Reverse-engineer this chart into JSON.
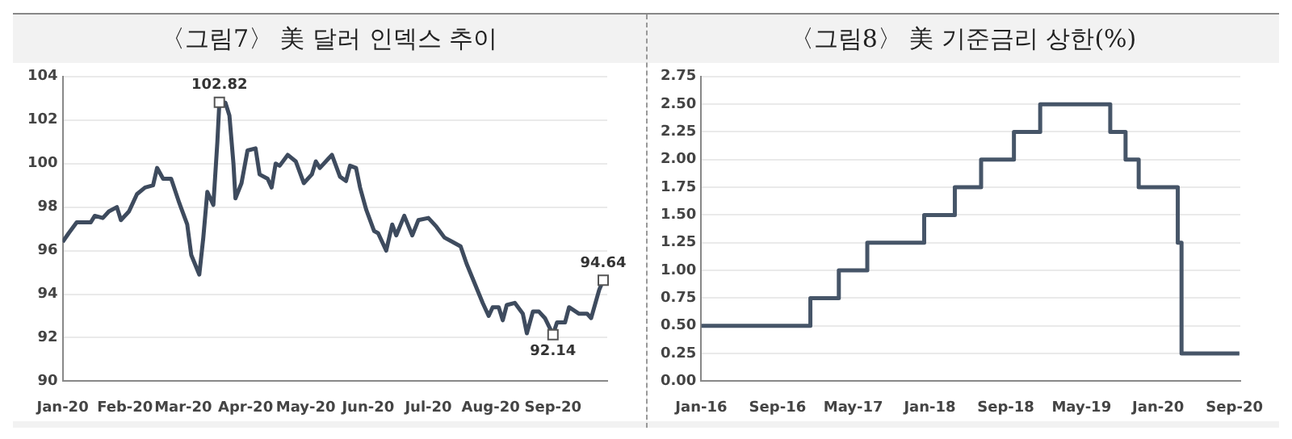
{
  "chart_data": [
    {
      "type": "line",
      "title": "〈그림7〉 美 달러 인덱스 추이",
      "x": [
        "2020-01-01",
        "2020-01-04",
        "2020-01-08",
        "2020-01-15",
        "2020-01-17",
        "2020-01-21",
        "2020-01-24",
        "2020-01-28",
        "2020-01-30",
        "2020-02-03",
        "2020-02-07",
        "2020-02-11",
        "2020-02-15",
        "2020-02-17",
        "2020-02-20",
        "2020-02-24",
        "2020-02-28",
        "2020-03-03",
        "2020-03-05",
        "2020-03-09",
        "2020-03-11",
        "2020-03-13",
        "2020-03-16",
        "2020-03-18",
        "2020-03-19",
        "2020-03-22",
        "2020-03-24",
        "2020-03-26",
        "2020-03-27",
        "2020-03-30",
        "2020-04-02",
        "2020-04-06",
        "2020-04-08",
        "2020-04-12",
        "2020-04-14",
        "2020-04-16",
        "2020-04-18",
        "2020-04-22",
        "2020-04-26",
        "2020-04-30",
        "2020-05-04",
        "2020-05-06",
        "2020-05-08",
        "2020-05-12",
        "2020-05-14",
        "2020-05-18",
        "2020-05-21",
        "2020-05-23",
        "2020-05-26",
        "2020-05-28",
        "2020-05-31",
        "2020-06-04",
        "2020-06-06",
        "2020-06-10",
        "2020-06-13",
        "2020-06-15",
        "2020-06-19",
        "2020-06-23",
        "2020-06-26",
        "2020-07-01",
        "2020-07-05",
        "2020-07-09",
        "2020-07-13",
        "2020-07-17",
        "2020-07-20",
        "2020-07-24",
        "2020-07-28",
        "2020-07-31",
        "2020-08-02",
        "2020-08-05",
        "2020-08-07",
        "2020-08-09",
        "2020-08-13",
        "2020-08-17",
        "2020-08-19",
        "2020-08-22",
        "2020-08-25",
        "2020-08-28",
        "2020-09-01",
        "2020-09-03",
        "2020-09-07",
        "2020-09-09",
        "2020-09-14",
        "2020-09-18",
        "2020-09-20",
        "2020-09-24",
        "2020-09-26"
      ],
      "series": [
        {
          "color": "#3e4b5e",
          "values": [
            96.4,
            96.8,
            97.3,
            97.3,
            97.6,
            97.5,
            97.8,
            98.0,
            97.4,
            97.8,
            98.6,
            98.9,
            99.0,
            99.8,
            99.3,
            99.3,
            98.2,
            97.2,
            95.8,
            94.9,
            96.6,
            98.7,
            98.1,
            101.0,
            102.82,
            102.8,
            102.2,
            100.0,
            98.4,
            99.1,
            100.6,
            100.7,
            99.5,
            99.3,
            98.9,
            100.0,
            99.9,
            100.4,
            100.1,
            99.1,
            99.5,
            100.1,
            99.8,
            100.2,
            100.4,
            99.4,
            99.2,
            99.9,
            99.8,
            98.9,
            97.9,
            96.9,
            96.8,
            96.0,
            97.2,
            96.7,
            97.6,
            96.7,
            97.4,
            97.5,
            97.1,
            96.6,
            96.4,
            96.2,
            95.4,
            94.5,
            93.6,
            93.0,
            93.4,
            93.4,
            92.8,
            93.5,
            93.6,
            93.1,
            92.2,
            93.2,
            93.2,
            92.9,
            92.14,
            92.7,
            92.7,
            93.4,
            93.1,
            93.1,
            92.9,
            94.2,
            94.64
          ]
        }
      ],
      "xlim": [
        "2020-01-01",
        "2020-09-28"
      ],
      "xticks": [
        {
          "value": "2020-01-01",
          "label": "Jan-20"
        },
        {
          "value": "2020-02-01",
          "label": "Feb-20"
        },
        {
          "value": "2020-03-01",
          "label": "Mar-20"
        },
        {
          "value": "2020-04-01",
          "label": "Apr-20"
        },
        {
          "value": "2020-05-01",
          "label": "May-20"
        },
        {
          "value": "2020-06-01",
          "label": "Jun-20"
        },
        {
          "value": "2020-07-01",
          "label": "Jul-20"
        },
        {
          "value": "2020-08-01",
          "label": "Aug-20"
        },
        {
          "value": "2020-09-01",
          "label": "Sep-20"
        }
      ],
      "ylim": [
        90,
        104
      ],
      "yticks": [
        90,
        92,
        94,
        96,
        98,
        100,
        102,
        104
      ],
      "grid": "y",
      "legend": false,
      "marker": "none",
      "line_style": "solid",
      "annotations": [
        {
          "text": "102.82",
          "x": "2020-03-19",
          "y": 102.82
        },
        {
          "text": "92.14",
          "x": "2020-09-01",
          "y": 92.14
        },
        {
          "text": "94.64",
          "x": "2020-09-26",
          "y": 94.64
        }
      ]
    },
    {
      "type": "step",
      "title": "〈그림8〉 美 기준금리 상한(%)",
      "x": [
        "2016-01-01",
        "2016-12-15",
        "2017-03-16",
        "2017-06-15",
        "2017-12-14",
        "2018-03-22",
        "2018-06-14",
        "2018-09-27",
        "2018-12-20",
        "2019-08-01",
        "2019-09-19",
        "2019-10-31",
        "2020-03-04",
        "2020-03-16",
        "2020-09-17"
      ],
      "series": [
        {
          "color": "#465568",
          "values": [
            0.5,
            0.75,
            1.0,
            1.25,
            1.5,
            1.75,
            2.0,
            2.25,
            2.5,
            2.25,
            2.0,
            1.75,
            1.25,
            0.25,
            0.25
          ]
        }
      ],
      "xlim": [
        "2016-01-01",
        "2020-09-20"
      ],
      "xticks": [
        {
          "value": "2016-01-01",
          "label": "Jan-16"
        },
        {
          "value": "2016-09-01",
          "label": "Sep-16"
        },
        {
          "value": "2017-05-01",
          "label": "May-17"
        },
        {
          "value": "2018-01-01",
          "label": "Jan-18"
        },
        {
          "value": "2018-09-01",
          "label": "Sep-18"
        },
        {
          "value": "2019-05-01",
          "label": "May-19"
        },
        {
          "value": "2020-01-01",
          "label": "Jan-20"
        },
        {
          "value": "2020-09-01",
          "label": "Sep-20"
        }
      ],
      "ylim": [
        0,
        2.75
      ],
      "yticks": [
        {
          "value": 0,
          "label": "0.00"
        },
        {
          "value": 0.25,
          "label": "0.25"
        },
        {
          "value": 0.5,
          "label": "0.50"
        },
        {
          "value": 0.75,
          "label": "0.75"
        },
        {
          "value": 1,
          "label": "1.00"
        },
        {
          "value": 1.25,
          "label": "1.25"
        },
        {
          "value": 1.5,
          "label": "1.50"
        },
        {
          "value": 1.75,
          "label": "1.75"
        },
        {
          "value": 2,
          "label": "2.00"
        },
        {
          "value": 2.25,
          "label": "2.25"
        },
        {
          "value": 2.5,
          "label": "2.50"
        },
        {
          "value": 2.75,
          "label": "2.75"
        }
      ],
      "grid": "y",
      "legend": false,
      "marker": "none",
      "line_style": "solid"
    }
  ]
}
